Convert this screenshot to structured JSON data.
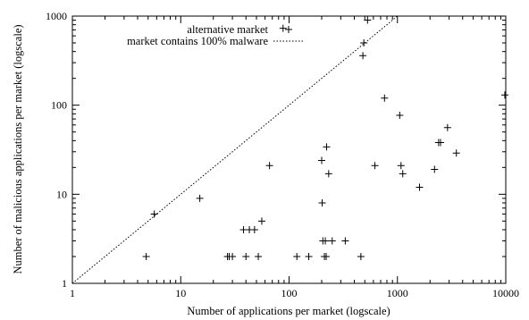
{
  "chart_data": {
    "type": "scatter",
    "xlabel": "Number of applications per market (logscale)",
    "ylabel": "Number of malicious applications per market (logscale)",
    "xscale": "log",
    "yscale": "log",
    "xlim": [
      1,
      10000
    ],
    "ylim": [
      1,
      1000
    ],
    "x_ticks": [
      1,
      10,
      100,
      1000,
      10000
    ],
    "x_tick_labels": [
      "1",
      "10",
      "100",
      "1000",
      "10000"
    ],
    "y_ticks": [
      1,
      10,
      100,
      1000
    ],
    "y_tick_labels": [
      "1",
      "10",
      "100",
      "1000"
    ],
    "legend_position": "top",
    "grid": false,
    "series": [
      {
        "name": "alternative market",
        "style": "plus-marker",
        "points": [
          [
            4.8,
            2
          ],
          [
            5.7,
            6
          ],
          [
            15,
            9
          ],
          [
            27,
            2
          ],
          [
            28,
            2
          ],
          [
            30,
            2
          ],
          [
            38,
            4
          ],
          [
            40,
            2
          ],
          [
            43,
            4
          ],
          [
            48,
            4
          ],
          [
            52,
            2
          ],
          [
            56,
            5
          ],
          [
            66,
            21
          ],
          [
            88,
            730
          ],
          [
            118,
            2
          ],
          [
            152,
            2
          ],
          [
            200,
            24
          ],
          [
            202,
            8
          ],
          [
            205,
            3
          ],
          [
            212,
            2
          ],
          [
            216,
            3
          ],
          [
            220,
            2
          ],
          [
            222,
            34
          ],
          [
            232,
            17
          ],
          [
            250,
            3
          ],
          [
            330,
            3
          ],
          [
            460,
            2
          ],
          [
            480,
            360
          ],
          [
            490,
            500
          ],
          [
            530,
            900
          ],
          [
            620,
            21
          ],
          [
            760,
            120
          ],
          [
            1050,
            77
          ],
          [
            1080,
            21
          ],
          [
            1120,
            17
          ],
          [
            1600,
            12
          ],
          [
            2200,
            19
          ],
          [
            2400,
            38
          ],
          [
            2500,
            38
          ],
          [
            2900,
            56
          ],
          [
            3500,
            29
          ],
          [
            9800,
            130
          ]
        ]
      },
      {
        "name": "market contains 100% malware",
        "style": "dotted-line",
        "points": [
          [
            1,
            1
          ],
          [
            1000,
            1000
          ]
        ]
      }
    ]
  }
}
